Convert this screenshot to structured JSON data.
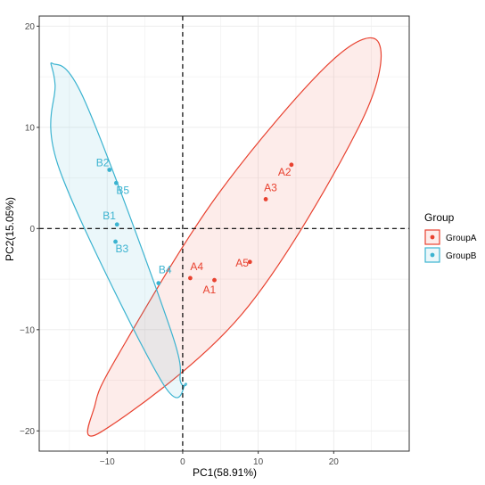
{
  "chart_data": {
    "type": "scatter",
    "xlabel": "PC1(58.91%)",
    "ylabel": "PC2(15.05%)",
    "xlim": [
      -19,
      30
    ],
    "ylim": [
      -22,
      21
    ],
    "xticks": [
      -10,
      0,
      10,
      20
    ],
    "yticks": [
      -20,
      -10,
      0,
      10,
      20
    ],
    "grid": true,
    "reference_lines": {
      "x": 0,
      "y": 0,
      "style": "dashed"
    },
    "legend": {
      "title": "Group",
      "position": "right"
    },
    "colors": {
      "GroupA": "#e8412f",
      "GroupB": "#3bb3d0"
    },
    "series": [
      {
        "name": "GroupA",
        "color": "#e8412f",
        "points": [
          {
            "label": "A1",
            "x": 4.2,
            "y": -5.1
          },
          {
            "label": "A2",
            "x": 14.4,
            "y": 6.3
          },
          {
            "label": "A3",
            "x": 11.0,
            "y": 2.9
          },
          {
            "label": "A4",
            "x": 1.0,
            "y": -4.9
          },
          {
            "label": "A5",
            "x": 8.9,
            "y": -3.3
          }
        ],
        "ellipse": {
          "path": [
            [
              26.0,
              18.3
            ],
            [
              23.3,
              10.0
            ],
            [
              7.8,
              -8.5
            ],
            [
              -10.8,
              -20.1
            ],
            [
              -11.6,
              -17.4
            ],
            [
              -8.4,
              -12.3
            ],
            [
              4.5,
              3.2
            ],
            [
              19.5,
              16.4
            ],
            [
              26.0,
              18.3
            ]
          ]
        }
      },
      {
        "name": "GroupB",
        "color": "#3bb3d0",
        "points": [
          {
            "label": "B1",
            "x": -8.7,
            "y": 0.4
          },
          {
            "label": "B2",
            "x": -9.7,
            "y": 5.8
          },
          {
            "label": "B3",
            "x": -8.9,
            "y": -1.3
          },
          {
            "label": "B4",
            "x": -3.2,
            "y": -5.4
          },
          {
            "label": "B5",
            "x": -8.8,
            "y": 4.5
          }
        ],
        "ellipse": {
          "path": [
            [
              -17.2,
              16.3
            ],
            [
              -12.9,
              12.5
            ],
            [
              -1.6,
              -10.0
            ],
            [
              -0.3,
              -15.1
            ],
            [
              0.4,
              -15.3
            ],
            [
              -2.8,
              -15.1
            ],
            [
              -16.3,
              5.8
            ],
            [
              -16.9,
              14.2
            ],
            [
              -17.2,
              16.3
            ]
          ]
        }
      }
    ]
  }
}
